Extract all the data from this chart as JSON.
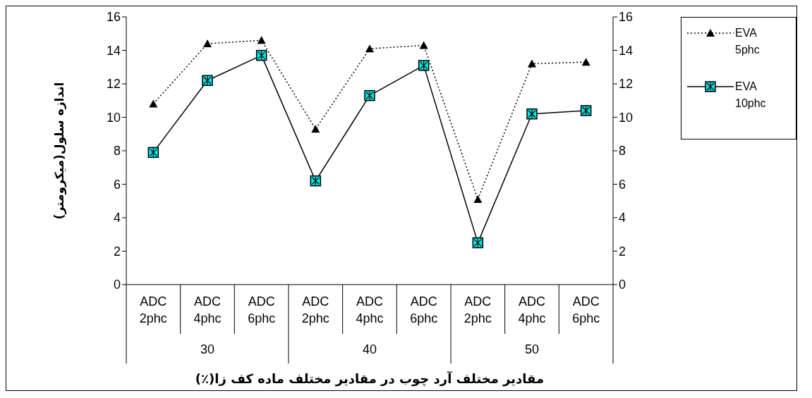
{
  "chart_data": {
    "type": "line",
    "ylabel": "اندازه  سلول(میکرومتر)",
    "xlabel": "مقادیر مختلف آرد چوب در مقادیر مختلف ماده کف زا(٪)",
    "categories": [
      "ADC 2phc",
      "ADC 4phc",
      "ADC 6phc",
      "ADC 2phc",
      "ADC 4phc",
      "ADC 6phc",
      "ADC 2phc",
      "ADC 4phc",
      "ADC 6phc"
    ],
    "annotations": [
      "30",
      "40",
      "50"
    ],
    "series": [
      {
        "name": "EVA 5phc",
        "color": "#000000",
        "marker": "triangle",
        "line_style": "dotted",
        "values": [
          10.8,
          14.4,
          14.6,
          9.3,
          14.1,
          14.3,
          5.1,
          13.2,
          13.3
        ]
      },
      {
        "name": "EVA 10phc",
        "color": "#000000",
        "marker": "square",
        "line_style": "solid",
        "values": [
          7.9,
          12.2,
          13.7,
          6.2,
          11.3,
          13.1,
          2.5,
          10.2,
          10.4
        ]
      }
    ],
    "ylim": [
      0,
      16
    ],
    "yticks": [
      0,
      2,
      4,
      6,
      8,
      10,
      12,
      14,
      16
    ],
    "y2lim": [
      0,
      16
    ],
    "y2ticks": [
      0,
      2,
      4,
      6,
      8,
      10,
      12,
      14,
      16
    ],
    "grid": false,
    "legend": "right"
  }
}
